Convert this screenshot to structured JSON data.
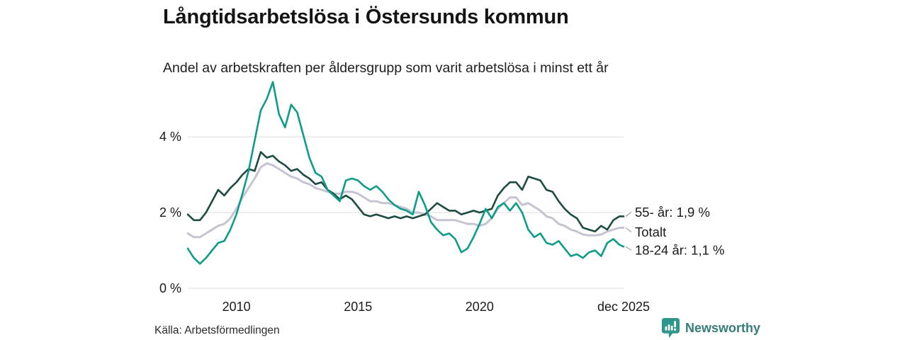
{
  "chart_data": {
    "type": "line",
    "title": "Långtidsarbetslösa i Östersunds kommun",
    "subtitle": "Andel av arbetskraften per åldersgrupp som varit arbetslösa i minst ett år",
    "xlabel": "",
    "ylabel": "",
    "unit": "%",
    "grid": "horizontal",
    "legend_position": "end-of-line-labels",
    "xlim": [
      2008.0,
      2025.92
    ],
    "ylim": [
      0,
      5.65
    ],
    "y_ticks": [
      {
        "label": "0 %",
        "y": 0
      },
      {
        "label": "2 %",
        "y": 2
      },
      {
        "label": "4 %",
        "y": 4
      }
    ],
    "x_ticks": [
      {
        "label": "2010",
        "x": 2010
      },
      {
        "label": "2015",
        "x": 2015
      },
      {
        "label": "2020",
        "x": 2020
      },
      {
        "label": "dec 2025",
        "x": 2025.92
      }
    ],
    "x": [
      2008.0,
      2008.25,
      2008.5,
      2008.75,
      2009.0,
      2009.25,
      2009.5,
      2009.75,
      2010.0,
      2010.25,
      2010.5,
      2010.75,
      2011.0,
      2011.25,
      2011.5,
      2011.75,
      2012.0,
      2012.25,
      2012.5,
      2012.75,
      2013.0,
      2013.25,
      2013.5,
      2013.75,
      2014.0,
      2014.25,
      2014.5,
      2014.75,
      2015.0,
      2015.25,
      2015.5,
      2015.75,
      2016.0,
      2016.25,
      2016.5,
      2016.75,
      2017.0,
      2017.25,
      2017.5,
      2017.75,
      2018.0,
      2018.25,
      2018.5,
      2018.75,
      2019.0,
      2019.25,
      2019.5,
      2019.75,
      2020.0,
      2020.25,
      2020.5,
      2020.75,
      2021.0,
      2021.25,
      2021.5,
      2021.75,
      2022.0,
      2022.25,
      2022.5,
      2022.75,
      2023.0,
      2023.25,
      2023.5,
      2023.75,
      2024.0,
      2024.25,
      2024.5,
      2024.75,
      2025.0,
      2025.25,
      2025.5,
      2025.75,
      2025.92
    ],
    "series": [
      {
        "id": "totalt",
        "name": "Totalt",
        "end_label": "Totalt",
        "end_value": 1.6,
        "color": "#c5c4d2",
        "values": [
          1.45,
          1.35,
          1.35,
          1.45,
          1.55,
          1.65,
          1.7,
          1.85,
          2.1,
          2.4,
          2.65,
          2.9,
          3.2,
          3.3,
          3.25,
          3.15,
          3.05,
          2.95,
          2.9,
          2.8,
          2.75,
          2.65,
          2.6,
          2.55,
          2.5,
          2.5,
          2.55,
          2.55,
          2.5,
          2.4,
          2.3,
          2.3,
          2.25,
          2.25,
          2.2,
          2.15,
          2.1,
          2.0,
          2.0,
          1.95,
          1.9,
          1.8,
          1.8,
          1.8,
          1.8,
          1.75,
          1.7,
          1.7,
          1.65,
          1.7,
          1.85,
          2.1,
          2.25,
          2.4,
          2.4,
          2.2,
          2.25,
          2.15,
          2.05,
          1.9,
          1.85,
          1.7,
          1.65,
          1.55,
          1.5,
          1.42,
          1.4,
          1.4,
          1.42,
          1.5,
          1.55,
          1.6,
          1.6
        ]
      },
      {
        "id": "55-ar",
        "name": "55- år",
        "end_label": "55- år: 1,9 %",
        "end_value": 1.9,
        "color": "#1d4b42",
        "values": [
          1.95,
          1.8,
          1.8,
          2.0,
          2.3,
          2.6,
          2.45,
          2.65,
          2.8,
          3.0,
          3.15,
          3.1,
          3.6,
          3.45,
          3.5,
          3.35,
          3.25,
          3.1,
          3.15,
          3.0,
          2.9,
          2.75,
          2.8,
          2.6,
          2.5,
          2.35,
          2.45,
          2.35,
          2.15,
          1.95,
          1.9,
          1.95,
          1.9,
          1.85,
          1.9,
          1.85,
          1.9,
          1.85,
          1.9,
          1.95,
          2.1,
          2.25,
          2.15,
          2.05,
          2.05,
          1.95,
          2.0,
          2.05,
          2.0,
          2.05,
          2.1,
          2.45,
          2.65,
          2.8,
          2.8,
          2.6,
          2.95,
          2.9,
          2.85,
          2.6,
          2.55,
          2.3,
          2.1,
          1.95,
          1.85,
          1.6,
          1.55,
          1.5,
          1.65,
          1.55,
          1.8,
          1.9,
          1.9
        ]
      },
      {
        "id": "18-24-ar",
        "name": "18-24 år",
        "end_label": "18-24 år: 1,1 %",
        "end_value": 1.1,
        "color": "#0e9c8a",
        "values": [
          1.05,
          0.8,
          0.65,
          0.8,
          1.0,
          1.2,
          1.25,
          1.55,
          1.95,
          2.5,
          3.1,
          3.9,
          4.7,
          5.0,
          5.45,
          4.6,
          4.25,
          4.85,
          4.65,
          4.05,
          3.45,
          3.05,
          2.95,
          2.6,
          2.45,
          2.3,
          2.85,
          2.9,
          2.85,
          2.7,
          2.6,
          2.7,
          2.55,
          2.35,
          2.2,
          2.1,
          2.05,
          1.95,
          2.55,
          2.2,
          1.75,
          1.55,
          1.4,
          1.45,
          1.3,
          0.95,
          1.05,
          1.35,
          1.7,
          2.1,
          1.85,
          2.15,
          2.25,
          2.05,
          2.25,
          2.0,
          1.55,
          1.35,
          1.45,
          1.2,
          1.15,
          1.25,
          1.05,
          0.85,
          0.9,
          0.8,
          0.95,
          1.0,
          0.85,
          1.2,
          1.3,
          1.15,
          1.1
        ]
      }
    ]
  },
  "footer": {
    "source": "Källa: Arbetsförmedlingen",
    "brand": "Newsworthy"
  }
}
